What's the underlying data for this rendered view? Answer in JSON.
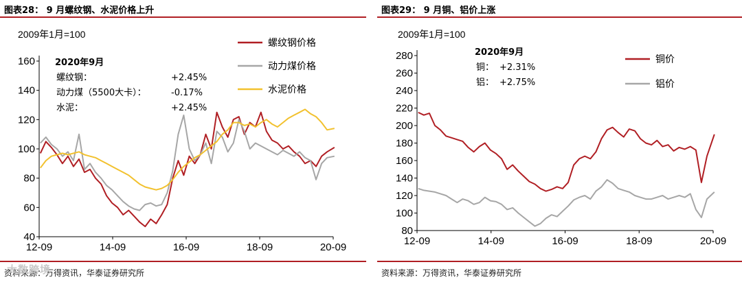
{
  "panels": {
    "left": {
      "title": "图表28： 9 月螺纹钢、水泥价格上升",
      "source": "资料来源：万得资讯，华泰证券研究所",
      "baseline_label": "2009年1月=100",
      "note": {
        "header": "2020年9月",
        "rows": [
          {
            "label": "螺纹钢：",
            "value": "+2.45%"
          },
          {
            "label": "动力煤（5500大卡）：",
            "value": "-0.17%"
          },
          {
            "label": "水泥：",
            "value": "+2.45%"
          }
        ]
      }
    },
    "right": {
      "title": "图表29： 9 月铜、铝价上涨",
      "source": "资料来源：万得资讯，华泰证券研究所",
      "baseline_label": "2009年1月=100",
      "note": {
        "header": "2020年9月",
        "rows": [
          {
            "label": "铜：",
            "value": "+2.31%"
          },
          {
            "label": "铝：",
            "value": "+2.75%"
          }
        ]
      }
    }
  },
  "watermark": "大数跨境",
  "chart_data": [
    {
      "type": "line",
      "xticks": [
        "12-09",
        "14-09",
        "16-09",
        "18-09",
        "20-09"
      ],
      "xlim": [
        "2012-09",
        "2020-09"
      ],
      "ylim": [
        40,
        160
      ],
      "yticks": [
        40,
        60,
        80,
        100,
        120,
        140,
        160
      ],
      "legend_position": "top-right",
      "series": [
        {
          "name": "螺纹钢价格",
          "color": "#b01e23",
          "x": [
            2012.7,
            2012.85,
            2013.0,
            2013.15,
            2013.3,
            2013.45,
            2013.6,
            2013.75,
            2013.9,
            2014.05,
            2014.2,
            2014.35,
            2014.5,
            2014.65,
            2014.8,
            2014.95,
            2015.1,
            2015.25,
            2015.4,
            2015.55,
            2015.7,
            2015.85,
            2016.0,
            2016.15,
            2016.3,
            2016.45,
            2016.6,
            2016.75,
            2016.9,
            2017.05,
            2017.2,
            2017.35,
            2017.5,
            2017.65,
            2017.8,
            2017.95,
            2018.1,
            2018.25,
            2018.4,
            2018.55,
            2018.7,
            2018.85,
            2019.0,
            2019.15,
            2019.3,
            2019.45,
            2019.6,
            2019.75,
            2019.9,
            2020.05,
            2020.2,
            2020.35,
            2020.5,
            2020.7
          ],
          "y": [
            97,
            105,
            101,
            96,
            90,
            95,
            88,
            93,
            84,
            86,
            80,
            76,
            68,
            63,
            60,
            55,
            58,
            54,
            50,
            47,
            52,
            49,
            55,
            62,
            80,
            92,
            82,
            95,
            90,
            96,
            110,
            100,
            125,
            115,
            108,
            120,
            122,
            110,
            118,
            115,
            125,
            112,
            106,
            104,
            100,
            102,
            98,
            95,
            90,
            92,
            88,
            95,
            98,
            101
          ]
        },
        {
          "name": "动力煤价格",
          "color": "#a6a6a6",
          "x": [
            2012.7,
            2012.85,
            2013.0,
            2013.15,
            2013.3,
            2013.45,
            2013.6,
            2013.75,
            2013.9,
            2014.05,
            2014.2,
            2014.35,
            2014.5,
            2014.65,
            2014.8,
            2014.95,
            2015.1,
            2015.25,
            2015.4,
            2015.55,
            2015.7,
            2015.85,
            2016.0,
            2016.15,
            2016.3,
            2016.45,
            2016.6,
            2016.75,
            2016.9,
            2017.05,
            2017.2,
            2017.35,
            2017.5,
            2017.65,
            2017.8,
            2017.95,
            2018.1,
            2018.25,
            2018.4,
            2018.55,
            2018.7,
            2018.85,
            2019.0,
            2019.15,
            2019.3,
            2019.45,
            2019.6,
            2019.75,
            2019.9,
            2020.05,
            2020.2,
            2020.35,
            2020.5,
            2020.7
          ],
          "y": [
            104,
            108,
            103,
            100,
            95,
            98,
            92,
            110,
            86,
            90,
            84,
            80,
            75,
            72,
            68,
            64,
            61,
            59,
            58,
            62,
            63,
            61,
            62,
            70,
            85,
            110,
            123,
            100,
            92,
            96,
            104,
            90,
            112,
            108,
            98,
            104,
            120,
            112,
            100,
            104,
            102,
            100,
            98,
            96,
            99,
            97,
            95,
            98,
            94,
            92,
            79,
            90,
            94,
            95
          ]
        },
        {
          "name": "水泥价格",
          "color": "#f2c12e",
          "x": [
            2012.7,
            2012.85,
            2013.0,
            2013.15,
            2013.3,
            2013.45,
            2013.6,
            2013.75,
            2013.9,
            2014.05,
            2014.2,
            2014.35,
            2014.5,
            2014.65,
            2014.8,
            2014.95,
            2015.1,
            2015.25,
            2015.4,
            2015.55,
            2015.7,
            2015.85,
            2016.0,
            2016.15,
            2016.3,
            2016.45,
            2016.6,
            2016.75,
            2016.9,
            2017.05,
            2017.2,
            2017.35,
            2017.5,
            2017.65,
            2017.8,
            2017.95,
            2018.1,
            2018.25,
            2018.4,
            2018.55,
            2018.7,
            2018.85,
            2019.0,
            2019.15,
            2019.3,
            2019.45,
            2019.6,
            2019.75,
            2019.9,
            2020.05,
            2020.2,
            2020.35,
            2020.5,
            2020.7
          ],
          "y": [
            87,
            92,
            95,
            96,
            97,
            96,
            97,
            98,
            96,
            95,
            94,
            92,
            90,
            88,
            86,
            84,
            82,
            79,
            76,
            74,
            73,
            72,
            73,
            75,
            79,
            84,
            88,
            91,
            94,
            96,
            99,
            102,
            105,
            110,
            113,
            118,
            118,
            116,
            117,
            115,
            118,
            120,
            117,
            115,
            118,
            121,
            123,
            125,
            127,
            124,
            122,
            118,
            113,
            114
          ]
        }
      ]
    },
    {
      "type": "line",
      "xticks": [
        "12-09",
        "14-09",
        "16-09",
        "18-09",
        "20-09"
      ],
      "xlim": [
        "2012-09",
        "2020-09"
      ],
      "ylim": [
        80,
        280
      ],
      "yticks": [
        80,
        100,
        120,
        140,
        160,
        180,
        200,
        220,
        240,
        260,
        280
      ],
      "legend_position": "top-right",
      "series": [
        {
          "name": "铜价",
          "color": "#b01e23",
          "x": [
            2012.7,
            2012.85,
            2013.0,
            2013.15,
            2013.3,
            2013.45,
            2013.6,
            2013.75,
            2013.9,
            2014.05,
            2014.2,
            2014.35,
            2014.5,
            2014.65,
            2014.8,
            2014.95,
            2015.1,
            2015.25,
            2015.4,
            2015.55,
            2015.7,
            2015.85,
            2016.0,
            2016.15,
            2016.3,
            2016.45,
            2016.6,
            2016.75,
            2016.9,
            2017.05,
            2017.2,
            2017.35,
            2017.5,
            2017.65,
            2017.8,
            2017.95,
            2018.1,
            2018.25,
            2018.4,
            2018.55,
            2018.7,
            2018.85,
            2019.0,
            2019.15,
            2019.3,
            2019.45,
            2019.6,
            2019.75,
            2019.9,
            2020.05,
            2020.2,
            2020.35,
            2020.5,
            2020.7
          ],
          "y": [
            215,
            212,
            214,
            200,
            195,
            188,
            186,
            184,
            182,
            175,
            170,
            176,
            180,
            172,
            168,
            162,
            150,
            155,
            148,
            142,
            136,
            133,
            128,
            125,
            127,
            130,
            128,
            135,
            155,
            162,
            165,
            162,
            170,
            185,
            195,
            198,
            192,
            187,
            196,
            194,
            185,
            180,
            178,
            183,
            176,
            178,
            171,
            175,
            173,
            176,
            172,
            135,
            165,
            190
          ]
        },
        {
          "name": "铝价",
          "color": "#a6a6a6",
          "x": [
            2012.7,
            2012.85,
            2013.0,
            2013.15,
            2013.3,
            2013.45,
            2013.6,
            2013.75,
            2013.9,
            2014.05,
            2014.2,
            2014.35,
            2014.5,
            2014.65,
            2014.8,
            2014.95,
            2015.1,
            2015.25,
            2015.4,
            2015.55,
            2015.7,
            2015.85,
            2016.0,
            2016.15,
            2016.3,
            2016.45,
            2016.6,
            2016.75,
            2016.9,
            2017.05,
            2017.2,
            2017.35,
            2017.5,
            2017.65,
            2017.8,
            2017.95,
            2018.1,
            2018.25,
            2018.4,
            2018.55,
            2018.7,
            2018.85,
            2019.0,
            2019.15,
            2019.3,
            2019.45,
            2019.6,
            2019.75,
            2019.9,
            2020.05,
            2020.2,
            2020.35,
            2020.5,
            2020.7
          ],
          "y": [
            128,
            126,
            125,
            124,
            122,
            120,
            116,
            112,
            116,
            114,
            110,
            112,
            118,
            114,
            113,
            110,
            104,
            106,
            100,
            95,
            90,
            85,
            88,
            94,
            98,
            96,
            102,
            108,
            115,
            118,
            120,
            116,
            125,
            130,
            138,
            134,
            128,
            126,
            124,
            120,
            118,
            116,
            116,
            118,
            120,
            116,
            118,
            120,
            118,
            122,
            104,
            95,
            116,
            124
          ]
        }
      ]
    }
  ]
}
